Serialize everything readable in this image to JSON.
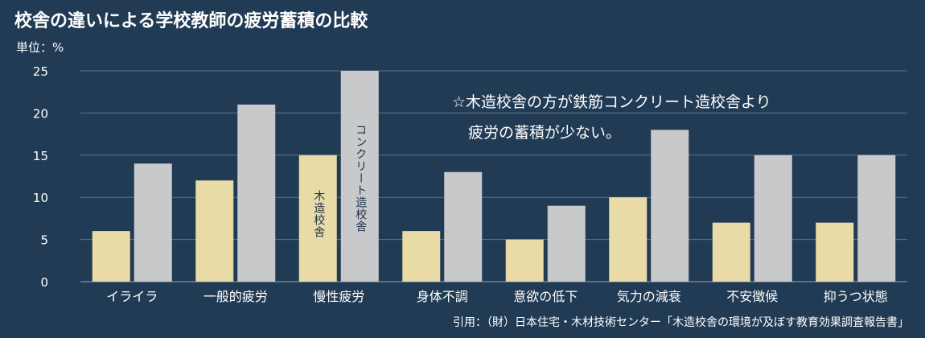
{
  "title": "校舎の違いによる学校教師の疲労蓄積の比較",
  "unit_label": "単位：%",
  "note": {
    "line1": "☆木造校舎の方が鉄筋コンクリート造校舎より",
    "line2": "疲労の蓄積が少ない。"
  },
  "source": "引用：（財）日本住宅・木材技術センター「木造校舎の環境が及ぼす教育効果調査報告書」",
  "colors": {
    "background": "#223b55",
    "wood": "#e8dba6",
    "concrete": "#c7c9cb",
    "grid": "#5d7389"
  },
  "chart_data": {
    "type": "bar",
    "categories": [
      "イライラ",
      "一般的疲労",
      "慢性疲労",
      "身体不調",
      "意欲の低下",
      "気力の減衰",
      "不安徴候",
      "抑うつ状態"
    ],
    "series": [
      {
        "name": "木造校舎",
        "color": "#e8dba6",
        "values": [
          6,
          12,
          15,
          6,
          5,
          10,
          7,
          7
        ]
      },
      {
        "name": "コンクリート造校舎",
        "color": "#c7c9cb",
        "values": [
          14,
          21,
          25,
          13,
          9,
          18,
          15,
          15
        ]
      }
    ],
    "ylim": [
      0,
      25
    ],
    "yticks": [
      0,
      5,
      10,
      15,
      20,
      25
    ],
    "grid": true
  }
}
